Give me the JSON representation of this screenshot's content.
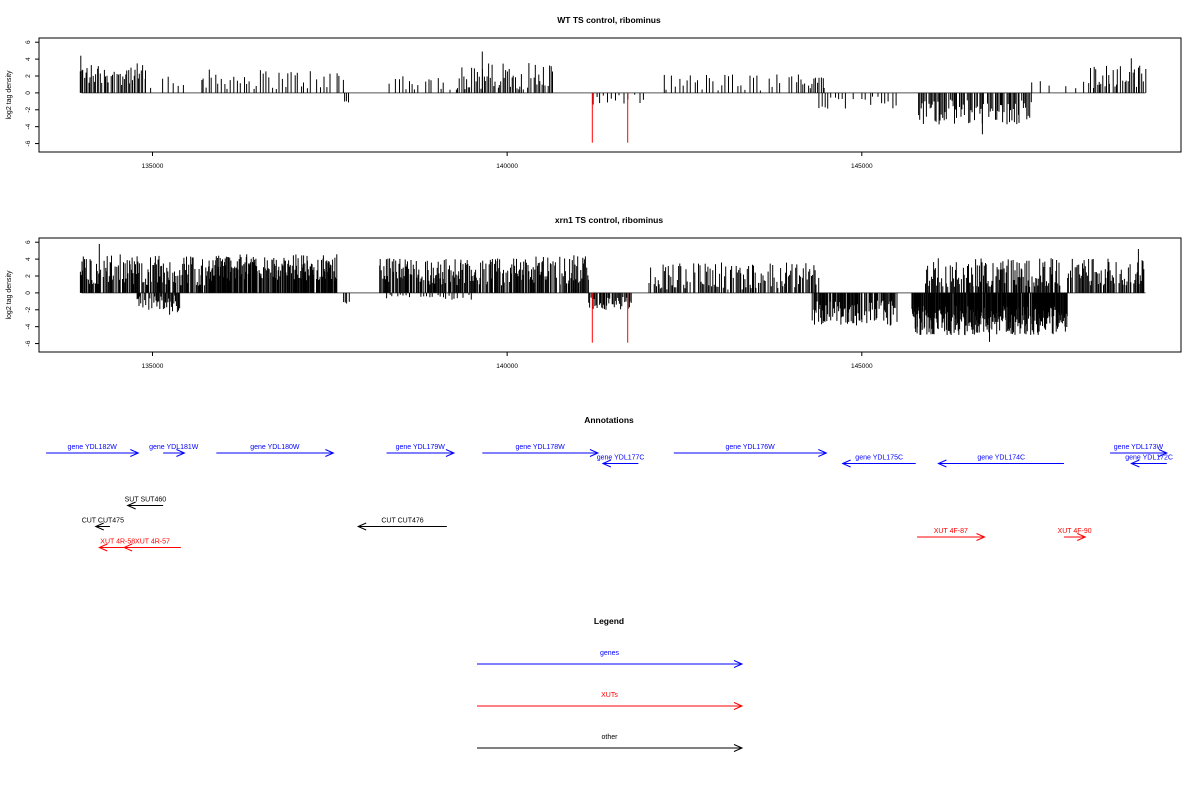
{
  "colors": {
    "genes": "#0000ff",
    "xuts": "#ff0000",
    "other": "#000000",
    "highlight": "#ff0000",
    "axis": "#000000",
    "bars": "#000000"
  },
  "xaxis": {
    "ticks": [
      135000,
      140000,
      145000
    ],
    "tick_labels": [
      "135000",
      "140000",
      "145000"
    ]
  },
  "yaxis": {
    "ticks": [
      6,
      4,
      2,
      0,
      -2,
      -4,
      -6
    ],
    "tick_labels": [
      "6",
      "4",
      "2",
      "0",
      "-2",
      "-4",
      "-6"
    ]
  },
  "chart_data": [
    {
      "type": "bar",
      "title": "WT TS control, ribominus",
      "ylabel": "log2 tag density",
      "xlim": [
        133400,
        149500
      ],
      "ylim": [
        -7,
        6.5
      ],
      "grid": false,
      "highlight_x": [
        141200,
        141700
      ],
      "segments": [
        {
          "from": 133980,
          "to": 134900,
          "step": 20,
          "base": 2.2,
          "amp": 1.3
        },
        {
          "from": 134900,
          "to": 135700,
          "step": 80,
          "base": 1.2,
          "amp": 1.2
        },
        {
          "from": 135700,
          "to": 137700,
          "step": 45,
          "base": 1.6,
          "amp": 1.2
        },
        {
          "from": 137700,
          "to": 137760,
          "step": 30,
          "base": -1.0,
          "amp": 0.3
        },
        {
          "from": 138300,
          "to": 139300,
          "step": 45,
          "base": 1.1,
          "amp": 0.9
        },
        {
          "from": 139300,
          "to": 140650,
          "step": 22,
          "base": 2.0,
          "amp": 1.6
        },
        {
          "from": 141200,
          "to": 141950,
          "step": 55,
          "base": -0.8,
          "amp": 0.6
        },
        {
          "from": 142200,
          "to": 144100,
          "step": 55,
          "base": 1.2,
          "amp": 1.1
        },
        {
          "from": 144100,
          "to": 144550,
          "step": 25,
          "base": 1.6,
          "amp": 1.1
        },
        {
          "from": 144400,
          "to": 145500,
          "step": 40,
          "base": -1.1,
          "amp": 0.8
        },
        {
          "from": 145800,
          "to": 147400,
          "step": 18,
          "base": -2.3,
          "amp": 1.5
        },
        {
          "from": 147400,
          "to": 148800,
          "step": 120,
          "base": 1.0,
          "amp": 0.5
        },
        {
          "from": 148200,
          "to": 149000,
          "step": 25,
          "base": 2.0,
          "amp": 1.3
        }
      ],
      "spikes": [
        {
          "x": 141200,
          "y": -5.9
        },
        {
          "x": 141700,
          "y": -5.9
        },
        {
          "x": 139650,
          "y": 4.9
        },
        {
          "x": 133990,
          "y": 4.4
        },
        {
          "x": 146700,
          "y": -4.9
        },
        {
          "x": 148800,
          "y": 4.1
        }
      ]
    },
    {
      "type": "bar",
      "title": "xrn1 TS control, ribominus",
      "ylabel": "log2 tag density",
      "xlim": [
        133400,
        149500
      ],
      "ylim": [
        -7,
        6.5
      ],
      "grid": false,
      "highlight_x": [
        141200,
        141700
      ],
      "segments": [
        {
          "from": 133980,
          "to": 134780,
          "step": 12,
          "base": 2.8,
          "amp": 1.8
        },
        {
          "from": 134780,
          "to": 135400,
          "step": 14,
          "base": -1.4,
          "amp": 1.2
        },
        {
          "from": 134780,
          "to": 135800,
          "step": 12,
          "base": 2.6,
          "amp": 1.8
        },
        {
          "from": 135800,
          "to": 137600,
          "step": 9,
          "base": 3.0,
          "amp": 1.6
        },
        {
          "from": 137700,
          "to": 137780,
          "step": 20,
          "base": -1.5,
          "amp": 0.6
        },
        {
          "from": 138200,
          "to": 139900,
          "step": 12,
          "base": 2.5,
          "amp": 1.6
        },
        {
          "from": 138300,
          "to": 139500,
          "step": 40,
          "base": -0.5,
          "amp": 0.3
        },
        {
          "from": 139900,
          "to": 141150,
          "step": 12,
          "base": 2.7,
          "amp": 1.8
        },
        {
          "from": 141150,
          "to": 141750,
          "step": 15,
          "base": -1.2,
          "amp": 0.8
        },
        {
          "from": 142000,
          "to": 144400,
          "step": 18,
          "base": 2.0,
          "amp": 1.6
        },
        {
          "from": 144300,
          "to": 145500,
          "step": 11,
          "base": -2.4,
          "amp": 1.5
        },
        {
          "from": 145700,
          "to": 147900,
          "step": 6,
          "base": -3.2,
          "amp": 1.8
        },
        {
          "from": 145900,
          "to": 147800,
          "step": 14,
          "base": 2.4,
          "amp": 1.7
        },
        {
          "from": 147900,
          "to": 149000,
          "step": 14,
          "base": 2.5,
          "amp": 1.6
        }
      ],
      "spikes": [
        {
          "x": 141200,
          "y": -5.9
        },
        {
          "x": 141700,
          "y": -5.9
        },
        {
          "x": 134250,
          "y": 5.8
        },
        {
          "x": 146800,
          "y": -5.8
        },
        {
          "x": 148900,
          "y": 5.2
        }
      ]
    }
  ],
  "annotations": {
    "title": "Annotations",
    "xlim": [
      133400,
      149500
    ],
    "features": [
      {
        "label": "gene YDL182W",
        "start": 133500,
        "end": 134800,
        "strand": "+",
        "row": 0,
        "class": "genes"
      },
      {
        "label": "gene YDL181W",
        "start": 135150,
        "end": 135450,
        "strand": "+",
        "row": 0,
        "class": "genes"
      },
      {
        "label": "gene YDL180W",
        "start": 135900,
        "end": 137550,
        "strand": "+",
        "row": 0,
        "class": "genes"
      },
      {
        "label": "gene YDL179W",
        "start": 138300,
        "end": 139250,
        "strand": "+",
        "row": 0,
        "class": "genes"
      },
      {
        "label": "gene YDL178W",
        "start": 139650,
        "end": 141280,
        "strand": "+",
        "row": 0,
        "class": "genes"
      },
      {
        "label": "gene YDL177C",
        "start": 141350,
        "end": 141850,
        "strand": "-",
        "row": 1,
        "class": "genes"
      },
      {
        "label": "gene YDL176W",
        "start": 142350,
        "end": 144500,
        "strand": "+",
        "row": 0,
        "class": "genes"
      },
      {
        "label": "gene YDL175C",
        "start": 144730,
        "end": 145760,
        "strand": "-",
        "row": 1,
        "class": "genes"
      },
      {
        "label": "gene YDL174C",
        "start": 146080,
        "end": 147850,
        "strand": "-",
        "row": 1,
        "class": "genes"
      },
      {
        "label": "gene YDL173W",
        "start": 148500,
        "end": 149300,
        "strand": "+",
        "row": 0,
        "class": "genes"
      },
      {
        "label": "gene YDL172C",
        "start": 148800,
        "end": 149300,
        "strand": "-",
        "row": 1,
        "class": "genes"
      },
      {
        "label": "SUT SUT460",
        "start": 134650,
        "end": 135150,
        "strand": "-",
        "row": 5,
        "class": "other"
      },
      {
        "label": "CUT CUT475",
        "start": 134200,
        "end": 134400,
        "strand": "-",
        "row": 7,
        "class": "other"
      },
      {
        "label": "CUT CUT476",
        "start": 137900,
        "end": 139150,
        "strand": "-",
        "row": 7,
        "class": "other"
      },
      {
        "label": "XUT 4R-58",
        "start": 134250,
        "end": 134770,
        "strand": "-",
        "row": 9,
        "class": "xuts"
      },
      {
        "label": "XUT 4R-57",
        "start": 134600,
        "end": 135400,
        "strand": "-",
        "row": 9,
        "class": "xuts"
      },
      {
        "label": "XUT 4F-87",
        "start": 145780,
        "end": 146730,
        "strand": "+",
        "row": 8,
        "class": "xuts"
      },
      {
        "label": "XUT 4F-90",
        "start": 147850,
        "end": 148150,
        "strand": "+",
        "row": 8,
        "class": "xuts"
      }
    ]
  },
  "legend": {
    "title": "Legend",
    "items": [
      {
        "label": "genes",
        "class": "genes"
      },
      {
        "label": "XUTs",
        "class": "xuts"
      },
      {
        "label": "other",
        "class": "other"
      }
    ]
  }
}
